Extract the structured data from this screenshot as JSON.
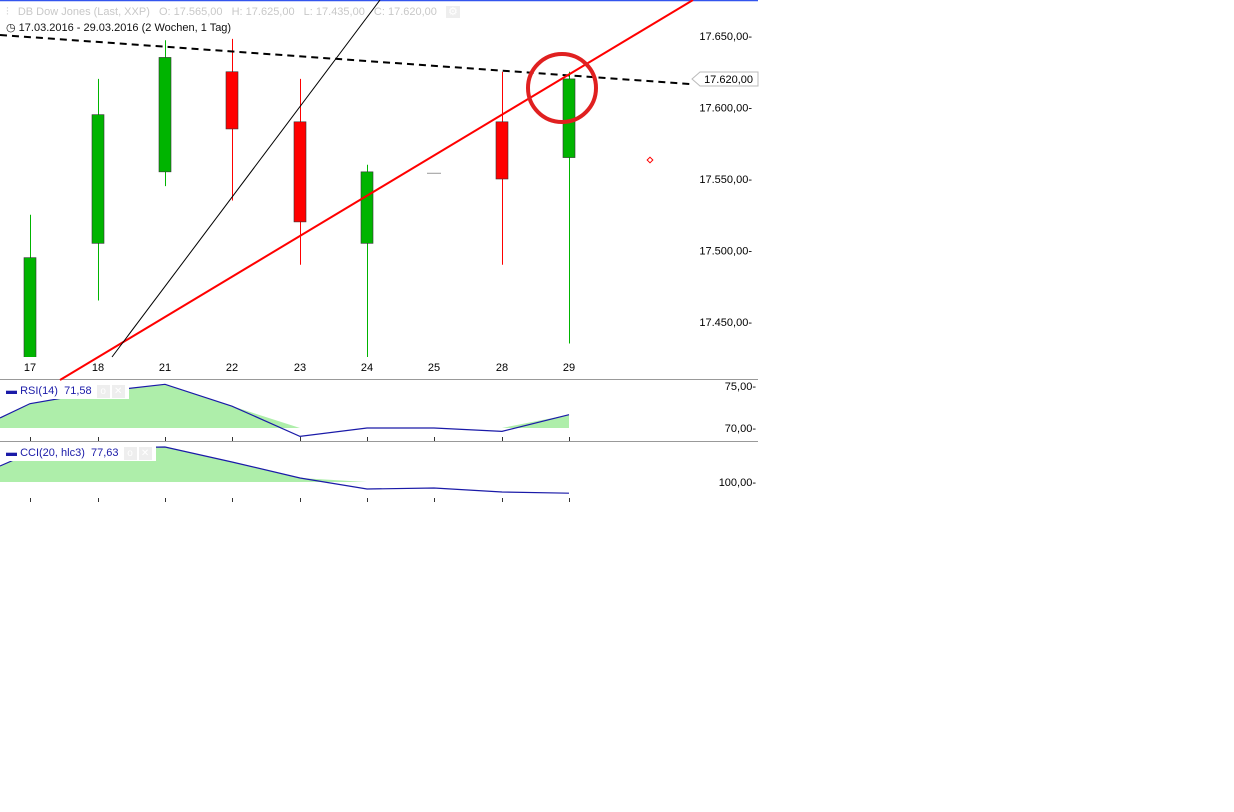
{
  "header": {
    "title": "DB Dow Jones (Last, XXP)",
    "open": "O: 17.565,00",
    "high": "H: 17.625,00",
    "low": "L: 17.435,00",
    "close": "C: 17.620,00",
    "range": "17.03.2016 - 29.03.2016 (2 Wochen, 1 Tag)"
  },
  "current_price_label": "17.620,00",
  "colors": {
    "up": "#00b400",
    "down": "#ff0000",
    "trend": "#ff0000",
    "indicator_line": "#1a1aa8",
    "indicator_fill": "#aeeeaa",
    "top_border": "#3355ee"
  },
  "chart_data": [
    {
      "type": "candlestick",
      "title": "DB Dow Jones (Last, XXP)",
      "categories": [
        "17",
        "18",
        "21",
        "22",
        "23",
        "24",
        "25",
        "28",
        "29"
      ],
      "open": [
        17420,
        17505,
        17555,
        17625,
        17590,
        17505,
        17554,
        17590,
        17565
      ],
      "high": [
        17525,
        17620,
        17647,
        17648,
        17620,
        17560,
        17554,
        17625,
        17625
      ],
      "low": [
        17410,
        17465,
        17545,
        17535,
        17490,
        17425,
        17554,
        17490,
        17435
      ],
      "close": [
        17495,
        17595,
        17635,
        17585,
        17520,
        17555,
        17554,
        17550,
        17620
      ],
      "y_ticks": [
        "17.650,00",
        "17.600,00",
        "17.550,00",
        "17.500,00",
        "17.450,00"
      ],
      "y_tick_values": [
        17650,
        17600,
        17550,
        17500,
        17450
      ],
      "ylim": [
        17410,
        17675
      ]
    },
    {
      "type": "area",
      "name": "RSI(14)",
      "label_value": "71,58",
      "x_start": 71.2,
      "values": [
        72.9,
        74.3,
        75.2,
        72.6,
        69.0,
        70.0,
        70.0,
        69.6,
        71.58
      ],
      "y_ticks": [
        "75,00",
        "70,00"
      ],
      "y_tick_values": [
        75,
        70
      ],
      "baseline": 70
    },
    {
      "type": "area",
      "name": "CCI(20, hlc3)",
      "label_value": "77,63",
      "x_start": 132,
      "values": [
        158,
        168,
        170,
        140,
        108,
        86,
        88,
        80,
        77.63
      ],
      "y_ticks": [
        "100,00"
      ],
      "y_tick_values": [
        100
      ],
      "baseline": 100
    }
  ]
}
